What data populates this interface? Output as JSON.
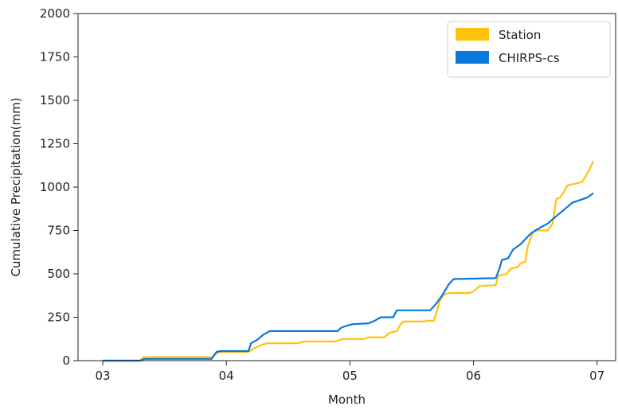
{
  "chart_data": {
    "type": "line",
    "xlabel": "Month",
    "ylabel": "Cumulative Precipitation(mm)",
    "xlim": [
      2.8,
      7.15
    ],
    "ylim": [
      0,
      2000
    ],
    "x_ticks": [
      {
        "value": 3,
        "label": "03"
      },
      {
        "value": 4,
        "label": "04"
      },
      {
        "value": 5,
        "label": "05"
      },
      {
        "value": 6,
        "label": "06"
      },
      {
        "value": 7,
        "label": "07"
      }
    ],
    "y_ticks": [
      0,
      250,
      500,
      750,
      1000,
      1250,
      1500,
      1750,
      2000
    ],
    "grid": false,
    "legend_position": "top-right",
    "series": [
      {
        "name": "Station",
        "color": "#FFC20A",
        "points": [
          [
            3.0,
            0
          ],
          [
            3.3,
            0
          ],
          [
            3.33,
            20
          ],
          [
            3.88,
            20
          ],
          [
            3.92,
            40
          ],
          [
            3.95,
            50
          ],
          [
            4.18,
            50
          ],
          [
            4.22,
            70
          ],
          [
            4.28,
            90
          ],
          [
            4.33,
            100
          ],
          [
            4.58,
            100
          ],
          [
            4.62,
            110
          ],
          [
            4.88,
            110
          ],
          [
            4.92,
            120
          ],
          [
            4.95,
            125
          ],
          [
            5.12,
            125
          ],
          [
            5.15,
            135
          ],
          [
            5.28,
            135
          ],
          [
            5.32,
            160
          ],
          [
            5.38,
            170
          ],
          [
            5.41,
            210
          ],
          [
            5.43,
            225
          ],
          [
            5.6,
            225
          ],
          [
            5.62,
            230
          ],
          [
            5.68,
            230
          ],
          [
            5.71,
            300
          ],
          [
            5.73,
            350
          ],
          [
            5.76,
            380
          ],
          [
            5.8,
            390
          ],
          [
            5.97,
            390
          ],
          [
            6.0,
            400
          ],
          [
            6.05,
            430
          ],
          [
            6.18,
            435
          ],
          [
            6.2,
            490
          ],
          [
            6.27,
            500
          ],
          [
            6.3,
            530
          ],
          [
            6.36,
            540
          ],
          [
            6.38,
            560
          ],
          [
            6.42,
            570
          ],
          [
            6.44,
            660
          ],
          [
            6.48,
            740
          ],
          [
            6.51,
            750
          ],
          [
            6.6,
            750
          ],
          [
            6.64,
            790
          ],
          [
            6.67,
            930
          ],
          [
            6.7,
            940
          ],
          [
            6.73,
            970
          ],
          [
            6.76,
            1010
          ],
          [
            6.83,
            1020
          ],
          [
            6.88,
            1030
          ],
          [
            6.93,
            1090
          ],
          [
            6.97,
            1150
          ]
        ]
      },
      {
        "name": "CHIRPS-cs",
        "color": "#0A78DC",
        "points": [
          [
            3.0,
            0
          ],
          [
            3.3,
            0
          ],
          [
            3.34,
            10
          ],
          [
            3.88,
            10
          ],
          [
            3.92,
            50
          ],
          [
            3.95,
            55
          ],
          [
            4.18,
            55
          ],
          [
            4.2,
            100
          ],
          [
            4.25,
            120
          ],
          [
            4.3,
            150
          ],
          [
            4.35,
            170
          ],
          [
            4.9,
            170
          ],
          [
            4.93,
            190
          ],
          [
            4.97,
            200
          ],
          [
            5.02,
            210
          ],
          [
            5.15,
            215
          ],
          [
            5.2,
            230
          ],
          [
            5.25,
            250
          ],
          [
            5.35,
            250
          ],
          [
            5.38,
            290
          ],
          [
            5.65,
            290
          ],
          [
            5.7,
            330
          ],
          [
            5.75,
            380
          ],
          [
            5.8,
            440
          ],
          [
            5.84,
            470
          ],
          [
            6.18,
            475
          ],
          [
            6.21,
            530
          ],
          [
            6.23,
            580
          ],
          [
            6.28,
            590
          ],
          [
            6.32,
            640
          ],
          [
            6.38,
            670
          ],
          [
            6.42,
            700
          ],
          [
            6.46,
            730
          ],
          [
            6.5,
            750
          ],
          [
            6.55,
            770
          ],
          [
            6.6,
            790
          ],
          [
            6.65,
            820
          ],
          [
            6.7,
            850
          ],
          [
            6.75,
            880
          ],
          [
            6.8,
            910
          ],
          [
            6.88,
            930
          ],
          [
            6.92,
            940
          ],
          [
            6.97,
            965
          ]
        ]
      }
    ]
  }
}
